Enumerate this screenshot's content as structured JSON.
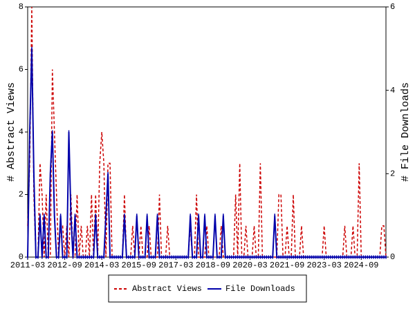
{
  "chart_data": {
    "type": "line",
    "y_label": "# Abstract Views",
    "y2_label": "# File Downloads",
    "x": [
      "2011-03",
      "2011-04",
      "2011-05",
      "2011-06",
      "2011-07",
      "2011-08",
      "2011-09",
      "2011-10",
      "2011-11",
      "2011-12",
      "2012-01",
      "2012-02",
      "2012-03",
      "2012-04",
      "2012-05",
      "2012-06",
      "2012-07",
      "2012-08",
      "2012-09",
      "2012-10",
      "2012-11",
      "2012-12",
      "2013-01",
      "2013-02",
      "2013-03",
      "2013-04",
      "2013-05",
      "2013-06",
      "2013-07",
      "2013-08",
      "2013-09",
      "2013-10",
      "2013-11",
      "2013-12",
      "2014-01",
      "2014-02",
      "2014-03",
      "2014-04",
      "2014-05",
      "2014-06",
      "2014-07",
      "2014-08",
      "2014-09",
      "2014-10",
      "2014-11",
      "2014-12",
      "2015-01",
      "2015-02",
      "2015-03",
      "2015-04",
      "2015-05",
      "2015-06",
      "2015-07",
      "2015-08",
      "2015-09",
      "2015-10",
      "2015-11",
      "2015-12",
      "2016-01",
      "2016-02",
      "2016-03",
      "2016-04",
      "2016-05",
      "2016-06",
      "2016-07",
      "2016-08",
      "2016-09",
      "2016-10",
      "2016-11",
      "2016-12",
      "2017-01",
      "2017-02",
      "2017-03",
      "2017-04",
      "2017-05",
      "2017-06",
      "2017-07",
      "2017-08",
      "2017-09",
      "2017-10",
      "2017-11",
      "2017-12",
      "2018-01",
      "2018-02",
      "2018-03",
      "2018-04",
      "2018-05",
      "2018-06",
      "2018-07",
      "2018-08",
      "2018-09",
      "2018-10",
      "2018-11",
      "2018-12",
      "2019-01",
      "2019-02",
      "2019-03",
      "2019-04",
      "2019-05",
      "2019-06",
      "2019-07",
      "2019-08",
      "2019-09",
      "2019-10",
      "2019-11",
      "2019-12",
      "2020-01",
      "2020-02",
      "2020-03",
      "2020-04",
      "2020-05",
      "2020-06",
      "2020-07",
      "2020-08",
      "2020-09",
      "2020-10",
      "2020-11",
      "2020-12",
      "2021-01",
      "2021-02",
      "2021-03",
      "2021-04",
      "2021-05",
      "2021-06",
      "2021-07",
      "2021-08",
      "2021-09",
      "2021-10",
      "2021-11",
      "2021-12",
      "2022-01",
      "2022-02",
      "2022-03",
      "2022-04",
      "2022-05",
      "2022-06",
      "2022-07",
      "2022-08",
      "2022-09",
      "2022-10",
      "2022-11",
      "2022-12",
      "2023-01",
      "2023-02",
      "2023-03",
      "2023-04",
      "2023-05",
      "2023-06",
      "2023-07",
      "2023-08",
      "2023-09",
      "2023-10",
      "2023-11",
      "2023-12",
      "2024-01",
      "2024-02",
      "2024-03",
      "2024-04",
      "2024-05",
      "2024-06",
      "2024-07",
      "2024-08",
      "2024-09",
      "2024-10",
      "2024-11",
      "2024-12",
      "2025-01",
      "2025-02",
      "2025-03",
      "2025-04",
      "2025-05",
      "2025-06",
      "2025-07",
      "2025-08",
      "2025-09"
    ],
    "xticks": [
      "2011-03",
      "2012-09",
      "2014-03",
      "2015-09",
      "2017-03",
      "2018-09",
      "2020-03",
      "2021-09",
      "2023-03",
      "2024-09"
    ],
    "ylim": [
      0,
      8
    ],
    "yticks": [
      0,
      2,
      4,
      6,
      8
    ],
    "y2lim": [
      0,
      6
    ],
    "y2ticks": [
      0,
      2,
      4,
      6
    ],
    "legend": "bottom",
    "series": [
      {
        "name": "Abstract Views",
        "color": "#cc0000",
        "dashed": true,
        "values": [
          1,
          3,
          8,
          2,
          0,
          0,
          3,
          2,
          0,
          2,
          0,
          0,
          6,
          4,
          2,
          0,
          1,
          1,
          0,
          1,
          0,
          2,
          0,
          0,
          2,
          0,
          1,
          0,
          0,
          1,
          0,
          2,
          0,
          2,
          0,
          3,
          4,
          3,
          0,
          3,
          3,
          0,
          0,
          0,
          0,
          0,
          0,
          2,
          0,
          0,
          0,
          1,
          0,
          0,
          0,
          1,
          0,
          0,
          0,
          1,
          0,
          0,
          0,
          0,
          2,
          0,
          0,
          0,
          1,
          0,
          0,
          0,
          0,
          0,
          0,
          0,
          0,
          0,
          0,
          1,
          0,
          0,
          2,
          0,
          0,
          0,
          0,
          1,
          0,
          0,
          0,
          0,
          0,
          0,
          1,
          0,
          0,
          0,
          0,
          0,
          0,
          2,
          0,
          3,
          0,
          0,
          1,
          0,
          0,
          0,
          1,
          0,
          0,
          3,
          0,
          0,
          0,
          0,
          0,
          0,
          0,
          0,
          2,
          2,
          0,
          0,
          1,
          0,
          0,
          2,
          0,
          0,
          0,
          1,
          0,
          0,
          0,
          0,
          0,
          0,
          0,
          0,
          0,
          0,
          1,
          0,
          0,
          0,
          0,
          0,
          0,
          0,
          0,
          0,
          1,
          0,
          0,
          0,
          1,
          0,
          0,
          3,
          0,
          0,
          0,
          0,
          0,
          0,
          0,
          0,
          0,
          0,
          1,
          1,
          0
        ]
      },
      {
        "name": "File Downloads",
        "color": "#0000aa",
        "axis": "y2",
        "values": [
          0,
          3,
          5,
          2,
          0,
          0,
          1,
          0,
          1,
          0,
          0,
          2,
          3,
          1,
          0,
          0,
          1,
          0,
          0,
          0,
          3,
          1,
          0,
          1,
          0,
          0,
          0,
          0,
          0,
          0,
          0,
          0,
          0,
          1,
          0,
          0,
          0,
          0,
          1,
          2,
          0,
          0,
          0,
          0,
          0,
          0,
          0,
          1,
          0,
          0,
          0,
          0,
          0,
          1,
          0,
          0,
          0,
          0,
          1,
          0,
          0,
          0,
          0,
          1,
          0,
          0,
          0,
          0,
          0,
          0,
          0,
          0,
          0,
          0,
          0,
          0,
          0,
          0,
          0,
          1,
          0,
          0,
          0,
          1,
          0,
          0,
          1,
          0,
          0,
          0,
          0,
          1,
          0,
          0,
          0,
          1,
          0,
          0,
          0,
          0,
          0,
          0,
          0,
          0,
          0,
          0,
          0,
          0,
          0,
          0,
          0,
          0,
          0,
          0,
          0,
          0,
          0,
          0,
          0,
          0,
          1,
          0,
          0,
          0,
          0,
          0,
          0,
          0,
          0,
          0,
          0,
          0,
          0,
          0,
          0,
          0,
          0,
          0,
          0,
          0,
          0,
          0,
          0,
          0,
          0,
          0,
          0,
          0,
          0,
          0,
          0,
          0,
          0,
          0,
          0,
          0,
          0,
          0,
          0,
          0,
          0,
          0,
          0,
          0,
          0,
          0,
          0,
          0,
          0,
          0,
          0,
          0,
          0,
          0,
          0
        ]
      }
    ]
  }
}
